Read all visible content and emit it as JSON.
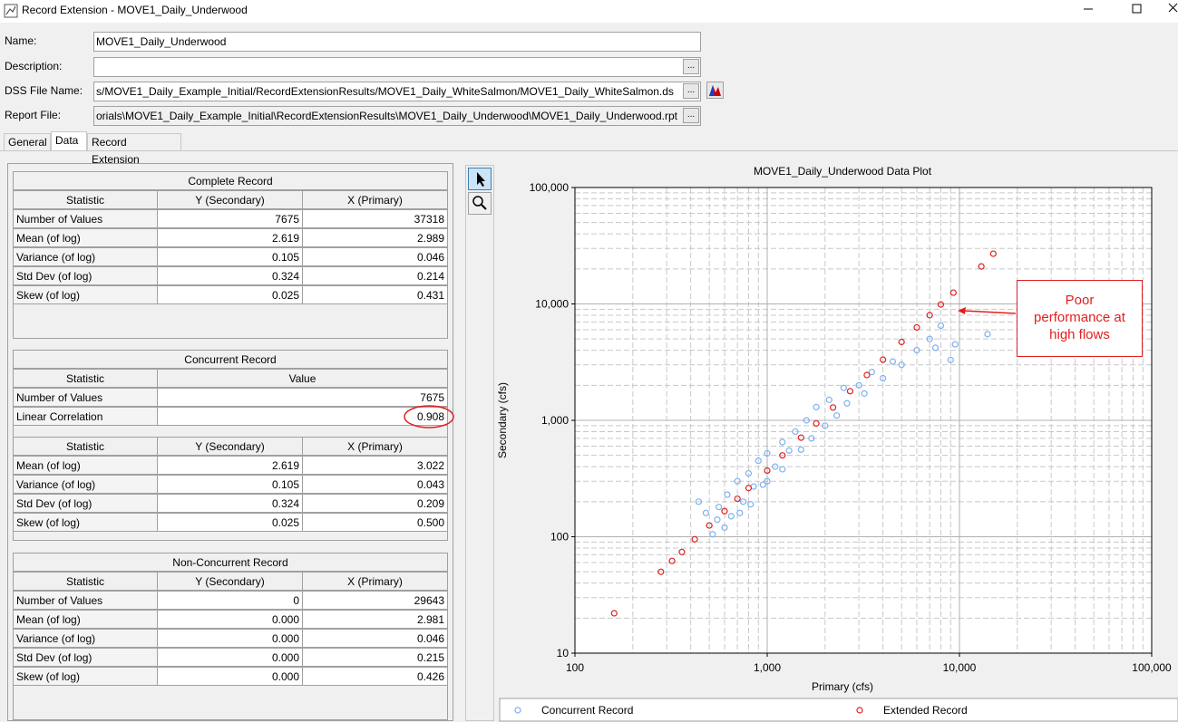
{
  "window": {
    "title": "Record Extension -  MOVE1_Daily_Underwood"
  },
  "form": {
    "browse_button": "...",
    "fields": [
      {
        "label": "Name:",
        "value": "MOVE1_Daily_Underwood"
      },
      {
        "label": "Description:"
      },
      {
        "label": "DSS File Name:",
        "value": "s/MOVE1_Daily_Example_Initial/RecordExtensionResults/MOVE1_Daily_WhiteSalmon/MOVE1_Daily_WhiteSalmon.ds"
      },
      {
        "label": "Report File:",
        "value": "orials\\MOVE1_Daily_Example_Initial\\RecordExtensionResults\\MOVE1_Daily_Underwood\\MOVE1_Daily_Underwood.rpt"
      }
    ]
  },
  "tabs": [
    "General",
    "Data",
    "Record Extension"
  ],
  "tables": [
    {
      "title": "Complete Record",
      "header": [
        "Statistic",
        "Y (Secondary)",
        "X (Primary)"
      ],
      "rows": [
        [
          "Number of Values",
          "7675",
          "37318"
        ],
        [
          "Mean (of log)",
          "2.619",
          "2.989"
        ],
        [
          "Variance (of log)",
          "0.105",
          "0.046"
        ],
        [
          "Std Dev (of log)",
          "0.324",
          "0.214"
        ],
        [
          "Skew (of log)",
          "0.025",
          "0.431"
        ]
      ]
    },
    {
      "title": "Concurrent Record",
      "header": [
        "Statistic",
        "Value"
      ],
      "rows": [
        [
          "Number of Values",
          "7675"
        ],
        [
          "Linear Correlation",
          "0.908"
        ]
      ],
      "header2": [
        "Statistic",
        "Y (Secondary)",
        "X (Primary)"
      ],
      "rows2": [
        [
          "Mean (of log)",
          "2.619",
          "3.022"
        ],
        [
          "Variance (of log)",
          "0.105",
          "0.043"
        ],
        [
          "Std Dev (of log)",
          "0.324",
          "0.209"
        ],
        [
          "Skew (of log)",
          "0.025",
          "0.500"
        ]
      ]
    },
    {
      "title": "Non-Concurrent Record",
      "header": [
        "Statistic",
        "Y (Secondary)",
        "X (Primary)"
      ],
      "rows": [
        [
          "Number of Values",
          "0",
          "29643"
        ],
        [
          "Mean (of log)",
          "0.000",
          "2.981"
        ],
        [
          "Variance (of log)",
          "0.000",
          "0.046"
        ],
        [
          "Std Dev (of log)",
          "0.000",
          "0.215"
        ],
        [
          "Skew (of log)",
          "0.000",
          "0.426"
        ]
      ]
    }
  ],
  "chart_data": {
    "type": "scatter",
    "title": "MOVE1_Daily_Underwood Data Plot",
    "xlabel": "Primary (cfs)",
    "ylabel": "Secondary (cfs)",
    "xlog": true,
    "ylog": true,
    "grid": true,
    "legend": "bottom",
    "xlim": [
      100,
      100000
    ],
    "ylim": [
      10,
      100000
    ],
    "xticks": [
      100,
      {
        "value": 1000,
        "label": "1,000"
      },
      {
        "value": 10000,
        "label": "10,000"
      },
      {
        "value": 100000,
        "label": "100,000"
      }
    ],
    "yticks": [
      10,
      100,
      {
        "value": 1000,
        "label": "1,000"
      },
      {
        "value": 10000,
        "label": "10,000"
      },
      {
        "value": 100000,
        "label": "100,000"
      }
    ],
    "annotation": "Poor performance at high flows",
    "series": [
      {
        "name": "Concurrent Record",
        "color": "#7fb0f0",
        "x": [
          440,
          480,
          520,
          550,
          560,
          600,
          620,
          650,
          700,
          720,
          750,
          800,
          820,
          850,
          900,
          950,
          1000,
          1000,
          1100,
          1200,
          1200,
          1300,
          1400,
          1500,
          1600,
          1700,
          1800,
          2000,
          2100,
          2300,
          2500,
          2600,
          3000,
          3200,
          3500,
          4000,
          4500,
          5000,
          6000,
          7000,
          7500,
          8000,
          9000,
          9500,
          14000
        ],
        "y": [
          200,
          160,
          105,
          140,
          180,
          120,
          230,
          150,
          300,
          160,
          200,
          350,
          190,
          270,
          450,
          280,
          520,
          300,
          400,
          650,
          380,
          550,
          800,
          560,
          1000,
          700,
          1300,
          900,
          1500,
          1100,
          1900,
          1400,
          2000,
          1700,
          2600,
          2300,
          3200,
          3000,
          4000,
          5000,
          4200,
          6500,
          3300,
          4500,
          5500
        ]
      },
      {
        "name": "Extended Record",
        "color": "#e02020",
        "x": [
          160,
          280,
          320,
          360,
          420,
          500,
          600,
          700,
          800,
          1000,
          1200,
          1500,
          1800,
          2200,
          2700,
          3300,
          4000,
          5000,
          6000,
          7000,
          8000,
          9300,
          13000,
          15000
        ],
        "y": [
          22,
          50,
          62,
          74,
          95,
          125,
          166,
          212,
          262,
          370,
          500,
          710,
          940,
          1290,
          1780,
          2450,
          3320,
          4710,
          6280,
          8010,
          9890,
          12500,
          21000,
          27000
        ]
      }
    ]
  }
}
